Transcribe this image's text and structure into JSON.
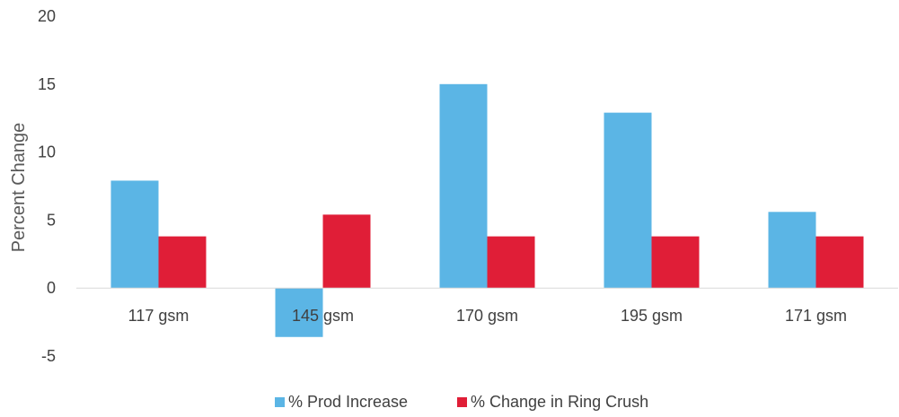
{
  "chart_data": {
    "type": "bar",
    "title": "",
    "xlabel": "",
    "ylabel": "Percent Change",
    "ylim": [
      -5,
      20
    ],
    "yticks": [
      -5,
      0,
      5,
      10,
      15,
      20
    ],
    "grid": false,
    "legend_position": "bottom",
    "categories": [
      "117 gsm",
      "145 gsm",
      "170 gsm",
      "195 gsm",
      "171 gsm"
    ],
    "series": [
      {
        "name": "% Prod Increase",
        "color": "#5bb5e5",
        "values": [
          7.9,
          -3.6,
          15.0,
          12.9,
          5.6
        ]
      },
      {
        "name": "% Change in Ring Crush",
        "color": "#e01e37",
        "values": [
          3.8,
          5.4,
          3.8,
          3.8,
          3.8
        ]
      }
    ]
  }
}
